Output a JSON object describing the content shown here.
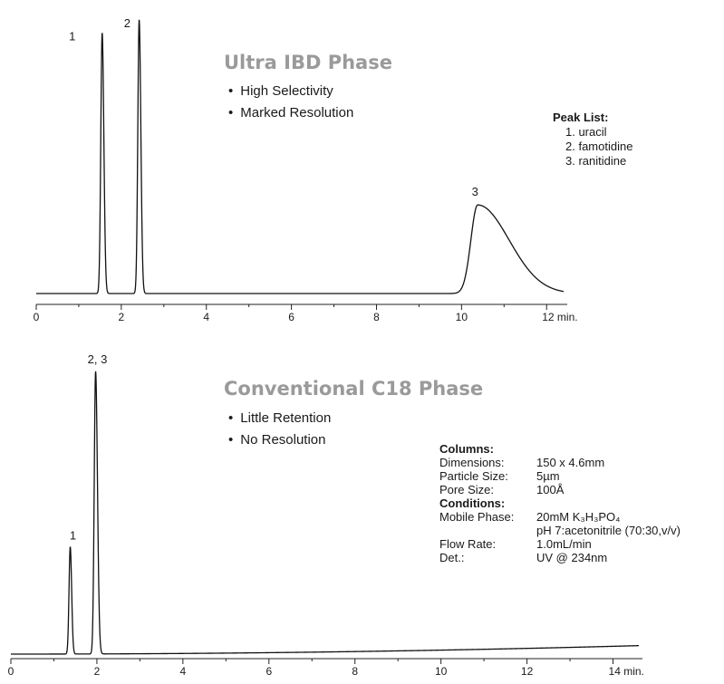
{
  "chart_data": [
    {
      "type": "line",
      "title": "Ultra IBD Phase",
      "bullets": [
        "High Selectivity",
        "Marked Resolution"
      ],
      "x_unit_label": "min.",
      "xlim": [
        0,
        12.4
      ],
      "ticks": [
        0,
        2,
        4,
        6,
        8,
        10,
        12
      ],
      "tick_labels": [
        "0",
        "2",
        "4",
        "6",
        "8",
        "10",
        "12 min."
      ],
      "baseline_drift": 0,
      "peaks": [
        {
          "label": "1",
          "t": 1.55,
          "height": 1.0,
          "sigma": 0.032,
          "tail": 0.02
        },
        {
          "label": "2",
          "t": 2.42,
          "height": 1.05,
          "sigma": 0.032,
          "tail": 0.02
        },
        {
          "label": "3",
          "t": 10.38,
          "height": 0.34,
          "sigma": 0.16,
          "tail": 0.3
        }
      ],
      "peak_list": {
        "header": "Peak List:",
        "items": [
          "1. uracil",
          "2. famotidine",
          "3. ranitidine"
        ]
      }
    },
    {
      "type": "line",
      "title": "Conventional C18 Phase",
      "bullets": [
        "Little Retention",
        "No Resolution"
      ],
      "x_unit_label": "min.",
      "xlim": [
        0,
        14.6
      ],
      "ticks": [
        0,
        2,
        4,
        6,
        8,
        10,
        12,
        14
      ],
      "tick_labels": [
        "0",
        "2",
        "4",
        "6",
        "8",
        "10",
        "12",
        "14 min."
      ],
      "baseline_drift": 0.03,
      "peaks": [
        {
          "label": "1",
          "t": 1.38,
          "height": 0.38,
          "sigma": 0.028,
          "tail": 0.015
        },
        {
          "label": "2, 3",
          "t": 1.97,
          "height": 1.0,
          "sigma": 0.032,
          "tail": 0.03
        }
      ],
      "columns": {
        "header": "Columns:",
        "rows": [
          {
            "k": "Dimensions:",
            "v": "150 x 4.6mm"
          },
          {
            "k": "Particle Size:",
            "v": "5µm"
          },
          {
            "k": "Pore Size:",
            "v": "100Å"
          }
        ]
      },
      "conditions": {
        "header": "Conditions:",
        "rows": [
          {
            "k": "Mobile Phase:",
            "v": "20mM K₃H₃PO₄"
          },
          {
            "k": "",
            "v": "pH 7:acetonitrile (70:30,v/v)"
          },
          {
            "k": "Flow Rate:",
            "v": "1.0mL/min"
          },
          {
            "k": "Det.:",
            "v": "UV @ 234nm"
          }
        ]
      }
    }
  ]
}
